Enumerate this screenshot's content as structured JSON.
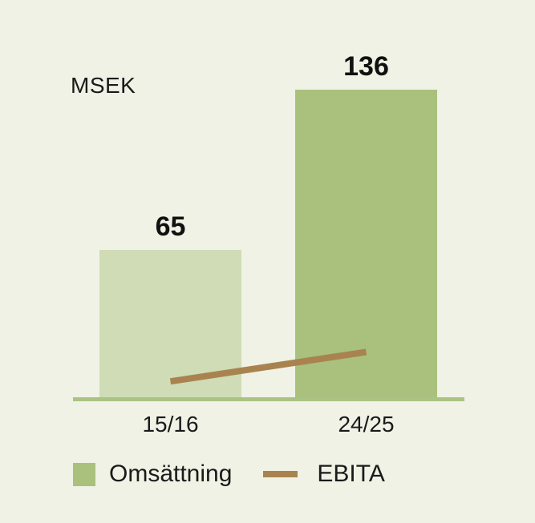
{
  "chart_data": {
    "type": "bar",
    "title": "",
    "ylabel": "MSEK",
    "xlabel": "",
    "categories": [
      "15/16",
      "24/25"
    ],
    "series": [
      {
        "name": "Omsättning",
        "type": "bar",
        "values": [
          65,
          136
        ],
        "bar_colors": [
          "#CFDCB5",
          "#A9C17D"
        ]
      },
      {
        "name": "EBITA",
        "type": "line",
        "values": [
          7,
          20
        ],
        "values_estimated": true,
        "color": "#A9834F"
      }
    ],
    "value_labels": [
      "65",
      "136"
    ],
    "ylim": [
      0,
      145
    ],
    "grid": false,
    "legend_position": "bottom",
    "colors": {
      "background": "#F0F2E5",
      "axis": "#ABC285",
      "text": "#1A1A1A"
    }
  }
}
